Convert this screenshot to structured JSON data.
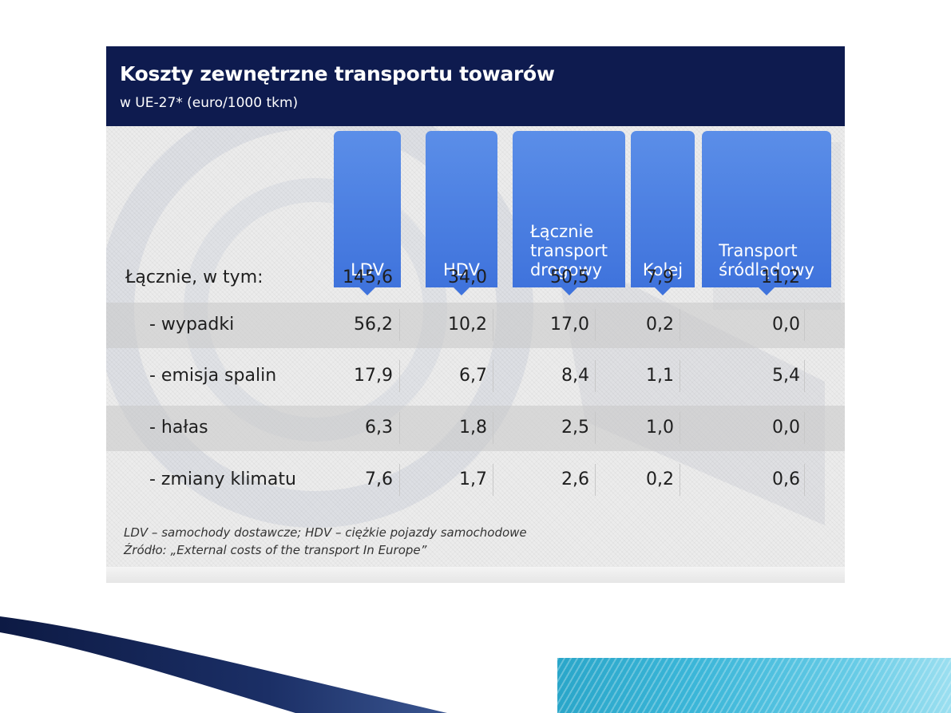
{
  "chart_data": {
    "type": "table",
    "title": "Koszty zewnętrzne transportu towarów",
    "subtitle": "w UE-27* (euro/1000 tkm)",
    "columns": [
      "LDV",
      "HDV",
      "Łącznie\ntransport\ndrogowy",
      "Kolej",
      "Transport\nśródlądowy"
    ],
    "rows": [
      {
        "label": "Łącznie, w tym:",
        "values": [
          "145,6",
          "34,0",
          "50,5",
          "7,9",
          "11,2"
        ]
      },
      {
        "label": "- wypadki",
        "values": [
          "56,2",
          "10,2",
          "17,0",
          "0,2",
          "0,0"
        ]
      },
      {
        "label": "- emisja spalin",
        "values": [
          "17,9",
          "6,7",
          "8,4",
          "1,1",
          "5,4"
        ]
      },
      {
        "label": "- hałas",
        "values": [
          "6,3",
          "1,8",
          "2,5",
          "1,0",
          "0,0"
        ]
      },
      {
        "label": "- zmiany klimatu",
        "values": [
          "7,6",
          "1,7",
          "2,6",
          "0,2",
          "0,6"
        ]
      }
    ],
    "footnote_1": "LDV – samochody dostawcze; HDV – ciężkie pojazdy samochodowe",
    "footnote_2": "Źródło: „External costs of the transport In Europe”"
  },
  "colors": {
    "header_bg": "#0e1b4f",
    "column_tab": "#3f73dc",
    "accent_teal": "#3bb6d8",
    "swoosh": "#15275a"
  }
}
